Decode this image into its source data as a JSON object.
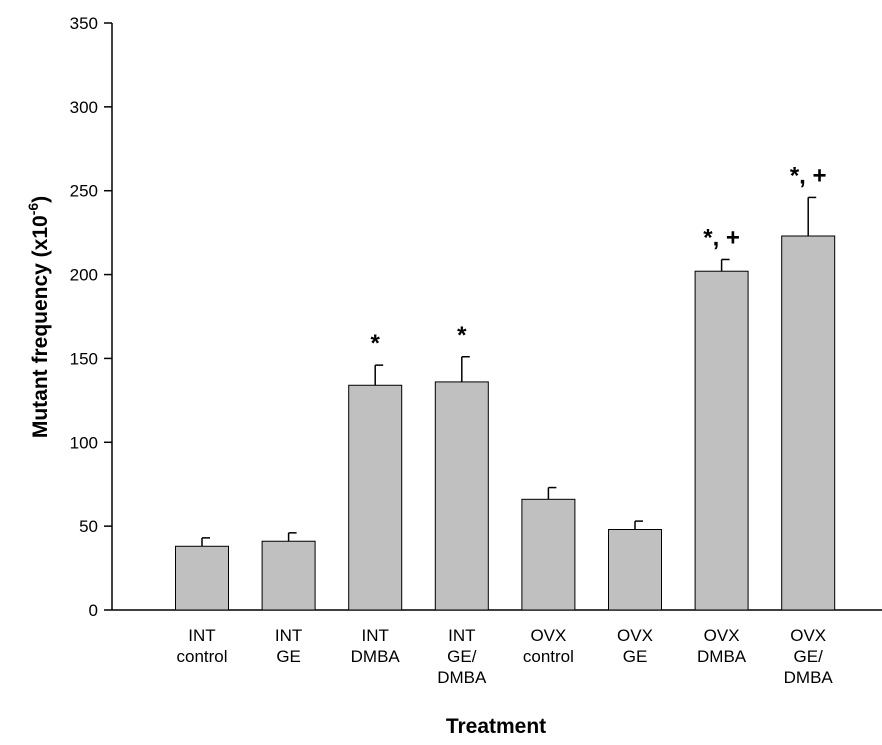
{
  "chart_data": {
    "type": "bar",
    "xlabel": "Treatment",
    "ylabel": "Mutant frequency (x10",
    "ylabel_superscript": "-6",
    "ylabel_suffix": ")",
    "ylim": [
      0,
      350
    ],
    "yticks": [
      "0",
      "50",
      "100",
      "150",
      "200",
      "250",
      "300",
      "350"
    ],
    "categories": [
      [
        "INT",
        "control"
      ],
      [
        "INT",
        "GE"
      ],
      [
        "INT",
        "DMBA"
      ],
      [
        "INT",
        "GE/",
        "DMBA"
      ],
      [
        "OVX",
        "control"
      ],
      [
        "OVX",
        "GE"
      ],
      [
        "OVX",
        "DMBA"
      ],
      [
        "OVX",
        "GE/",
        "DMBA"
      ]
    ],
    "values": [
      38,
      41,
      134,
      136,
      66,
      48,
      202,
      223
    ],
    "errors": [
      5,
      5,
      12,
      15,
      7,
      5,
      7,
      23
    ],
    "annotations": [
      "",
      "",
      "*",
      "*",
      "",
      "",
      "*, +",
      "*, +"
    ],
    "bar_color": "#c0c0c0",
    "grid": false
  }
}
